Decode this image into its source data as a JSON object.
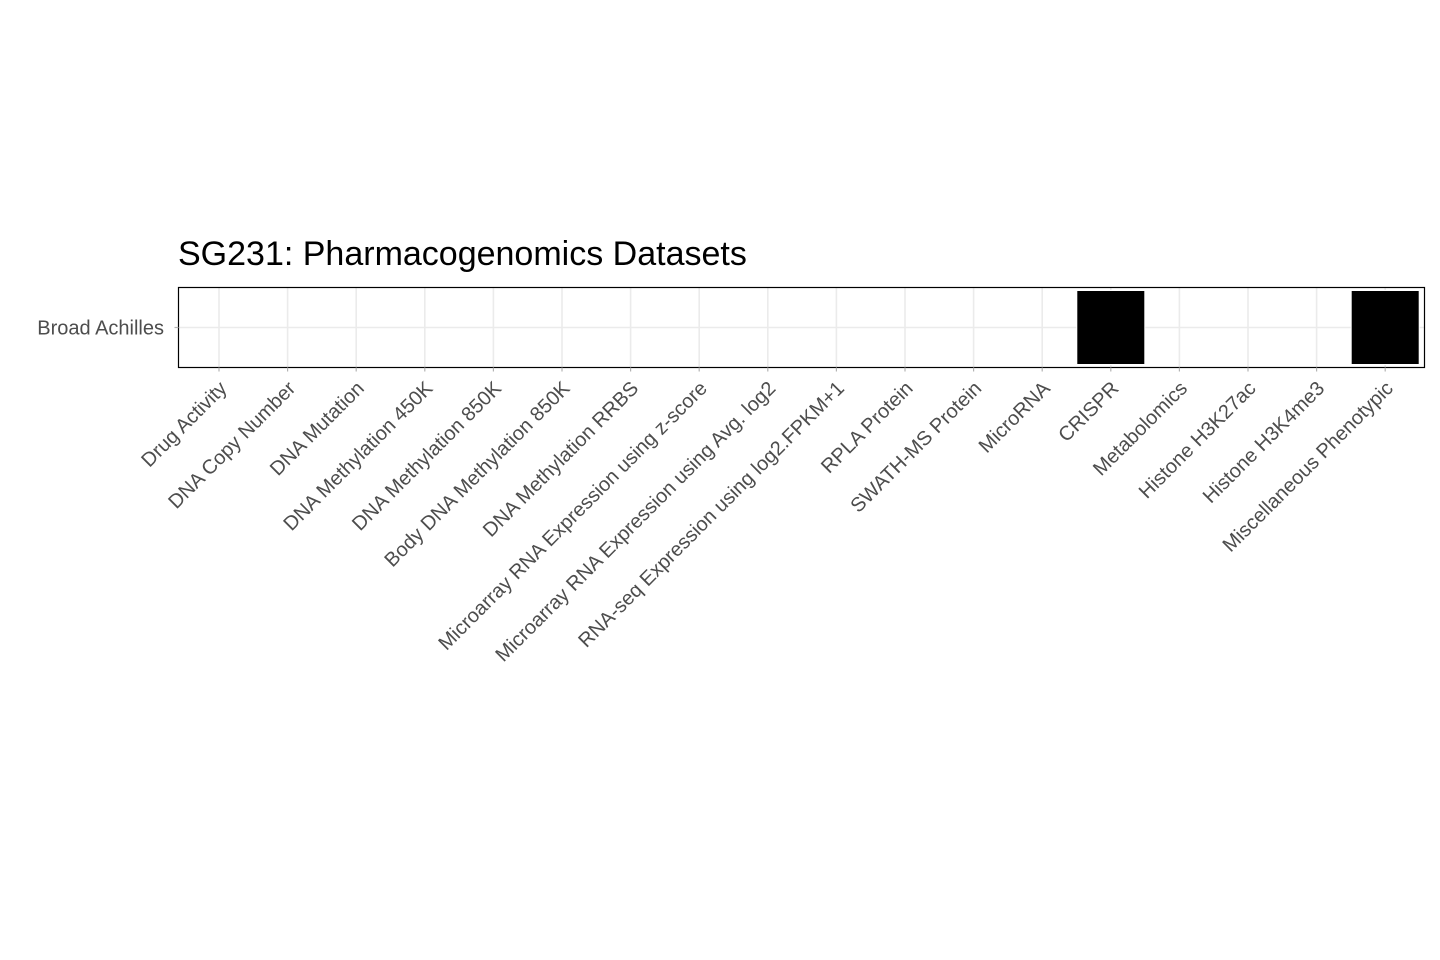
{
  "chart_data": {
    "type": "heatmap",
    "title": "SG231: Pharmacogenomics Datasets",
    "xlabel": "",
    "ylabel": "",
    "categories": [
      "Drug Activity",
      "DNA Copy Number",
      "DNA Mutation",
      "DNA Methylation 450K",
      "DNA Methylation 850K",
      "Body DNA Methylation 850K",
      "DNA Methylation RRBS",
      "Microarray RNA Expression using z-score",
      "Microarray RNA Expression using Avg. log2",
      "RNA-seq Expression using log2.FPKM+1",
      "RPLA Protein",
      "SWATH-MS Protein",
      "MicroRNA",
      "CRISPR",
      "Metabolomics",
      "Histone H3K27ac",
      "Histone H3K4me3",
      "Miscellaneous Phenotypic"
    ],
    "rows": [
      "Broad Achilles"
    ],
    "values": [
      [
        0,
        0,
        0,
        0,
        0,
        0,
        0,
        0,
        0,
        0,
        0,
        0,
        0,
        1,
        0,
        0,
        0,
        1
      ]
    ],
    "filled_color": "#000000",
    "empty_color": "#ffffff",
    "grid": true,
    "legend": "none"
  }
}
